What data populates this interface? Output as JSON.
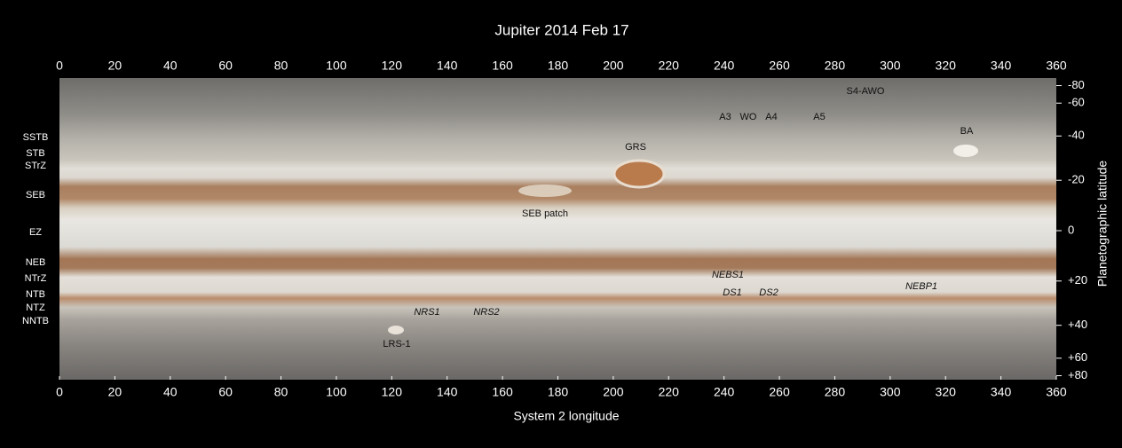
{
  "title": "Jupiter 2014 Feb 17",
  "x_axis": {
    "label": "System 2 longitude",
    "range": [
      0,
      360
    ],
    "ticks": [
      0,
      20,
      40,
      60,
      80,
      100,
      120,
      140,
      160,
      180,
      200,
      220,
      240,
      260,
      280,
      300,
      320,
      340,
      360
    ]
  },
  "y_axis": {
    "label": "Planetographic latitude",
    "ticks": [
      -80,
      -60,
      -40,
      -20,
      0,
      {
        "value": 20,
        "label": "+20"
      },
      {
        "value": 40,
        "label": "+40"
      },
      {
        "value": 60,
        "label": "+60"
      },
      {
        "value": 80,
        "label": "+80"
      }
    ]
  },
  "belts": [
    "SSTB",
    "STB",
    "STrZ",
    "SEB",
    "EZ",
    "NEB",
    "NTrZ",
    "NTB",
    "NTZ",
    "NNTB"
  ],
  "features": [
    "S4-AWO",
    "A3",
    "WO",
    "A4",
    "A5",
    "BA",
    "GRS",
    "SEB patch",
    "NEBS1",
    "NEBP1",
    "DS1",
    "DS2",
    "NRS1",
    "NRS2",
    "LRS-1"
  ]
}
